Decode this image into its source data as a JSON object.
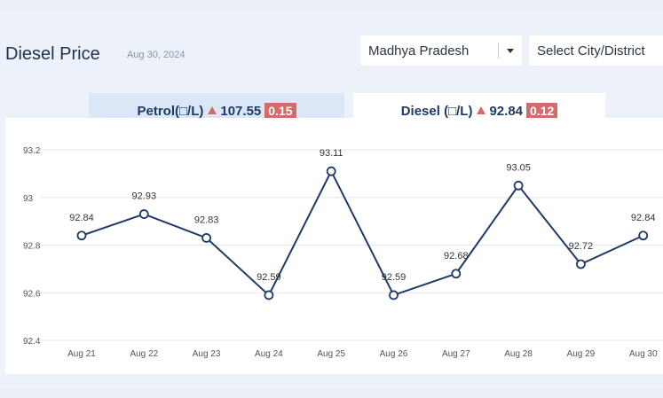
{
  "header": {
    "title": "Diesel Price",
    "date": "Aug 30, 2024",
    "state_select": "Madhya Pradesh",
    "city_select": "Select City/District"
  },
  "tabs": [
    {
      "label": "Petrol(□/L)",
      "price": "107.55",
      "change": "0.15",
      "trend": "up"
    },
    {
      "label": "Diesel (□/L)",
      "price": "92.84",
      "change": "0.12",
      "trend": "up"
    }
  ],
  "colors": {
    "line": "#1f3a66",
    "badge": "#d46a6a"
  },
  "chart_data": {
    "type": "line",
    "categories": [
      "Aug 21",
      "Aug 22",
      "Aug 23",
      "Aug 24",
      "Aug 25",
      "Aug 26",
      "Aug 27",
      "Aug 28",
      "Aug 29",
      "Aug 30"
    ],
    "values": [
      92.84,
      92.93,
      92.83,
      92.59,
      93.11,
      92.59,
      92.68,
      93.05,
      92.72,
      92.84
    ],
    "data_labels": [
      "92.84",
      "92.93",
      "92.83",
      "92.59",
      "93.11",
      "92.59",
      "92.68",
      "93.05",
      "92.72",
      "92.84"
    ],
    "y_ticks": [
      "92.4",
      "92.6",
      "92.8",
      "93",
      "93.2"
    ],
    "y_tick_values": [
      92.4,
      92.6,
      92.8,
      93.0,
      93.2
    ],
    "ylim": [
      92.4,
      93.2
    ],
    "grid": true
  }
}
